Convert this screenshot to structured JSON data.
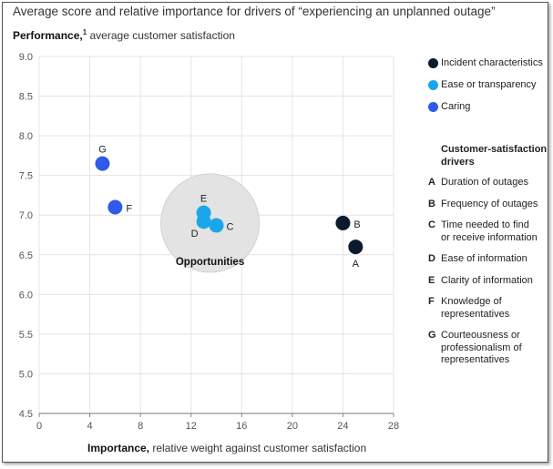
{
  "chart_data": {
    "type": "scatter",
    "title": "Average score and relative importance for drivers of “experiencing an unplanned outage”",
    "ylabel_bold": "Performance,",
    "ylabel_sup": "1",
    "ylabel_rest": "average customer satisfaction",
    "xlabel_bold": "Importance,",
    "xlabel_rest": "relative weight against customer satisfaction",
    "xlim": [
      0,
      28
    ],
    "ylim": [
      4.5,
      9.0
    ],
    "x_ticks": [
      "0",
      "4",
      "8",
      "12",
      "16",
      "20",
      "24",
      "28"
    ],
    "y_ticks": [
      "9.0",
      "8.5",
      "8.0",
      "7.5",
      "7.0",
      "6.5",
      "6.0",
      "5.5",
      "5.0",
      "4.5"
    ],
    "grid": true,
    "series": [
      {
        "name": "Incident characteristics",
        "color": "#0b1b2e",
        "points": [
          {
            "label": "A",
            "x": 25.0,
            "y": 6.6
          },
          {
            "label": "B",
            "x": 24.0,
            "y": 6.9
          }
        ]
      },
      {
        "name": "Ease or transparency",
        "color": "#1aa6ea",
        "points": [
          {
            "label": "C",
            "x": 14.0,
            "y": 6.87
          },
          {
            "label": "D",
            "x": 13.0,
            "y": 6.92
          },
          {
            "label": "E",
            "x": 13.0,
            "y": 7.03
          }
        ]
      },
      {
        "name": "Caring",
        "color": "#2f5be8",
        "points": [
          {
            "label": "F",
            "x": 6.0,
            "y": 7.1
          },
          {
            "label": "G",
            "x": 5.0,
            "y": 7.65
          }
        ]
      }
    ],
    "annotation": {
      "label": "Opportunities",
      "cx": 13.5,
      "cy": 6.9,
      "color": "#e3e3e3"
    },
    "legend_position": "right",
    "drivers_title": "Customer-satisfaction drivers",
    "drivers": [
      {
        "key": "A",
        "text": "Duration of outages"
      },
      {
        "key": "B",
        "text": "Frequency of outages"
      },
      {
        "key": "C",
        "text": "Time needed to find or receive information"
      },
      {
        "key": "D",
        "text": "Ease of information"
      },
      {
        "key": "E",
        "text": "Clarity of information"
      },
      {
        "key": "F",
        "text": "Knowledge of representatives"
      },
      {
        "key": "G",
        "text": "Courteousness or professionalism of representatives"
      }
    ]
  }
}
